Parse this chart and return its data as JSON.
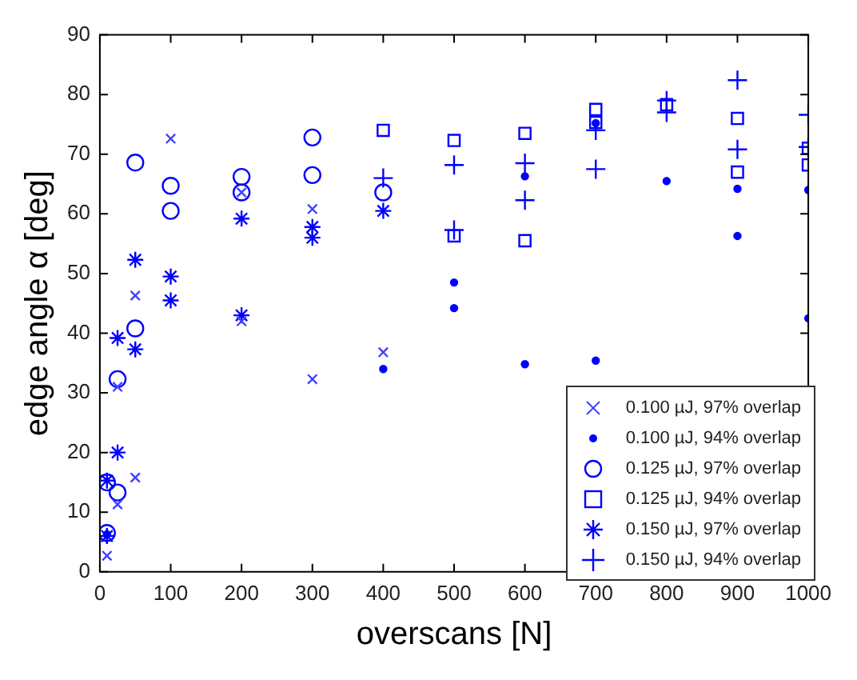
{
  "chart_data": {
    "type": "scatter",
    "xlabel": "overscans [N]",
    "ylabel": "edge angle α [deg]",
    "xlim": [
      0,
      1000
    ],
    "xticks": [
      0,
      100,
      200,
      300,
      400,
      500,
      600,
      700,
      800,
      900,
      1000
    ],
    "ylim": [
      0,
      90
    ],
    "yticks": [
      0,
      10,
      20,
      30,
      40,
      50,
      60,
      70,
      80,
      90
    ],
    "grid": false,
    "legend": "bottom right",
    "series": [
      {
        "name": "0.100 µJ, 97% overlap",
        "color": "#4040ff",
        "marker": "x",
        "x": [
          10,
          25,
          25,
          50,
          50,
          100,
          200,
          200,
          300,
          300,
          400
        ],
        "values": [
          2.7,
          11.3,
          31,
          15.8,
          46.3,
          72.6,
          42,
          63.6,
          60.8,
          32.3,
          36.8
        ]
      },
      {
        "name": "0.100 µJ, 94% overlap",
        "color": "#0000ff",
        "marker": "point",
        "x": [
          10,
          400,
          500,
          500,
          600,
          600,
          700,
          700,
          800,
          900,
          900,
          1000,
          1000
        ],
        "values": [
          6.3,
          34,
          48.5,
          44.2,
          34.8,
          66.3,
          35.4,
          75.2,
          65.5,
          64.2,
          56.3,
          64,
          42.5
        ]
      },
      {
        "name": "0.125 µJ, 97% overlap",
        "color": "#0000ff",
        "marker": "circle",
        "x": [
          10,
          10,
          25,
          25,
          50,
          50,
          100,
          100,
          200,
          200,
          300,
          300,
          400
        ],
        "values": [
          6.5,
          15,
          32.3,
          13.3,
          68.6,
          40.8,
          64.7,
          60.5,
          66.2,
          63.6,
          72.8,
          66.5,
          63.6
        ]
      },
      {
        "name": "0.125 µJ, 94% overlap",
        "color": "#0000ff",
        "marker": "square",
        "x": [
          400,
          500,
          500,
          600,
          600,
          700,
          700,
          800,
          900,
          900,
          1000,
          1000
        ],
        "values": [
          74,
          72.3,
          56.3,
          73.5,
          55.5,
          77.5,
          75.3,
          78.3,
          76,
          67,
          71,
          68.2
        ]
      },
      {
        "name": "0.150 µJ, 97% overlap",
        "color": "#0000ff",
        "marker": "cross",
        "x": [
          10,
          10,
          25,
          25,
          50,
          50,
          100,
          100,
          200,
          200,
          300,
          300,
          400
        ],
        "values": [
          15.3,
          6,
          39.2,
          20,
          52.3,
          37.3,
          49.5,
          45.5,
          59.2,
          43,
          57.8,
          56,
          60.5
        ]
      },
      {
        "name": "0.150 µJ, 94% overlap",
        "color": "#0000ff",
        "marker": "plus",
        "x": [
          400,
          500,
          500,
          600,
          600,
          700,
          700,
          800,
          800,
          900,
          900,
          1000,
          1000
        ],
        "values": [
          66,
          68.2,
          57.3,
          68.5,
          62.3,
          67.5,
          74,
          79,
          77,
          82.4,
          70.8,
          76.6,
          71.2
        ]
      }
    ]
  }
}
